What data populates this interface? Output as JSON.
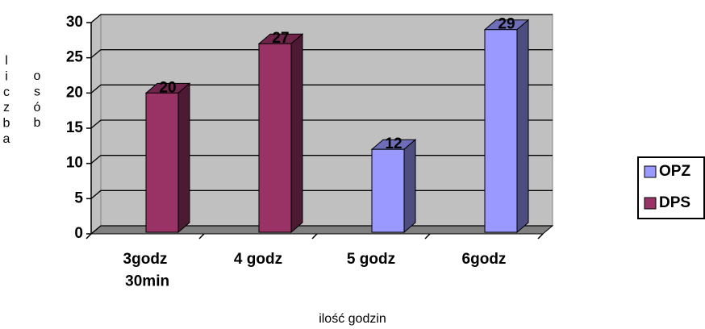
{
  "chart_data": {
    "type": "bar3d",
    "categories": [
      "3godz\n30min",
      "4 godz",
      "5 godz",
      "6godz"
    ],
    "series": [
      {
        "name": "OPZ",
        "color": "#9999ff",
        "values": [
          null,
          null,
          12,
          29
        ]
      },
      {
        "name": "DPS",
        "color": "#993366",
        "values": [
          20,
          27,
          null,
          null
        ]
      }
    ],
    "ylim": [
      0,
      30
    ],
    "yticks": [
      0,
      5,
      10,
      15,
      20,
      25,
      30
    ],
    "grid": true,
    "y_label": "liczba osób",
    "x_label": "ilość godzin",
    "legend": "right"
  }
}
